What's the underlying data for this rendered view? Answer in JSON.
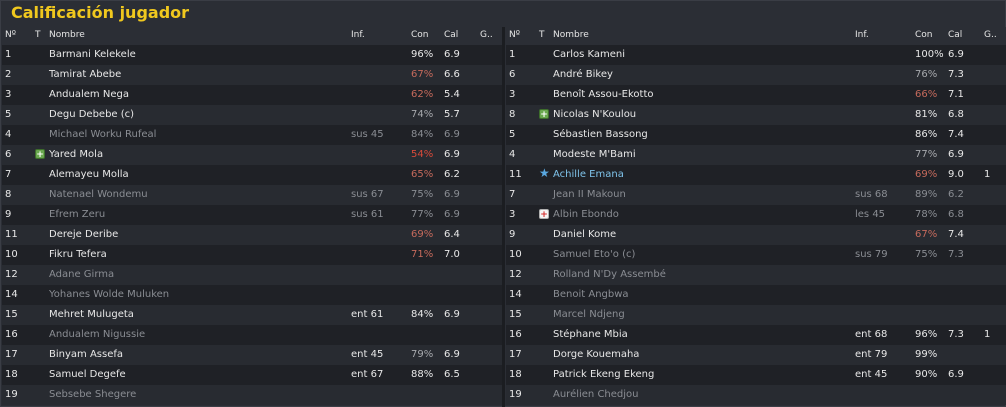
{
  "title": "Calificación jugador",
  "headers": {
    "no": "Nº",
    "t": "T",
    "name": "Nombre",
    "inf": "Inf.",
    "con": "Con",
    "cal": "Cal",
    "g": "G.."
  },
  "left_team": [
    {
      "no": "1",
      "name": "Barmani Kelekele",
      "inf": "",
      "con": "96%",
      "cal": "6.9",
      "g": ""
    },
    {
      "no": "2",
      "name": "Tamirat Abebe",
      "inf": "",
      "con": "67%",
      "cal": "6.6",
      "g": ""
    },
    {
      "no": "3",
      "name": "Andualem Nega",
      "inf": "",
      "con": "62%",
      "cal": "5.4",
      "g": ""
    },
    {
      "no": "5",
      "name": "Degu Debebe (c)",
      "inf": "",
      "con": "74%",
      "cal": "5.7",
      "g": ""
    },
    {
      "no": "4",
      "name": "Michael Worku Rufeal",
      "inf": "sus 45",
      "con": "84%",
      "cal": "6.9",
      "g": ""
    },
    {
      "no": "6",
      "icon": "plus-icon",
      "name": "Yared Mola",
      "inf": "",
      "con": "54%",
      "cal": "6.9",
      "g": ""
    },
    {
      "no": "7",
      "name": "Alemayeu Molla",
      "inf": "",
      "con": "65%",
      "cal": "6.2",
      "g": ""
    },
    {
      "no": "8",
      "name": "Natenael Wondemu",
      "inf": "sus 67",
      "con": "75%",
      "cal": "6.9",
      "g": ""
    },
    {
      "no": "9",
      "name": "Efrem Zeru",
      "inf": "sus 61",
      "con": "77%",
      "cal": "6.9",
      "g": ""
    },
    {
      "no": "11",
      "name": "Dereje Deribe",
      "inf": "",
      "con": "69%",
      "cal": "6.4",
      "g": ""
    },
    {
      "no": "10",
      "name": "Fikru Tefera",
      "inf": "",
      "con": "71%",
      "cal": "7.0",
      "g": ""
    },
    {
      "no": "12",
      "name": "Adane Girma",
      "inf": "",
      "con": "",
      "cal": "",
      "g": ""
    },
    {
      "no": "14",
      "name": "Yohanes Wolde Muluken",
      "inf": "",
      "con": "",
      "cal": "",
      "g": ""
    },
    {
      "no": "15",
      "name": "Mehret Mulugeta",
      "inf": "ent 61",
      "con": "84%",
      "cal": "6.9",
      "g": ""
    },
    {
      "no": "16",
      "name": "Andualem Nigussie",
      "inf": "",
      "con": "",
      "cal": "",
      "g": ""
    },
    {
      "no": "17",
      "name": "Binyam Assefa",
      "inf": "ent 45",
      "con": "79%",
      "cal": "6.9",
      "g": ""
    },
    {
      "no": "18",
      "name": "Samuel Degefe",
      "inf": "ent 67",
      "con": "88%",
      "cal": "6.5",
      "g": ""
    },
    {
      "no": "19",
      "name": "Sebsebe Shegere",
      "inf": "",
      "con": "",
      "cal": "",
      "g": ""
    }
  ],
  "right_team": [
    {
      "no": "1",
      "name": "Carlos Kameni",
      "inf": "",
      "con": "100%",
      "cal": "6.9",
      "g": ""
    },
    {
      "no": "6",
      "name": "André Bikey",
      "inf": "",
      "con": "76%",
      "cal": "7.3",
      "g": ""
    },
    {
      "no": "3",
      "name": "Benoît Assou-Ekotto",
      "inf": "",
      "con": "66%",
      "cal": "7.1",
      "g": ""
    },
    {
      "no": "8",
      "icon": "plus-icon",
      "name": "Nicolas N'Koulou",
      "inf": "",
      "con": "81%",
      "cal": "6.8",
      "g": ""
    },
    {
      "no": "5",
      "name": "Sébastien Bassong",
      "inf": "",
      "con": "86%",
      "cal": "7.4",
      "g": ""
    },
    {
      "no": "4",
      "name": "Modeste M'Bami",
      "inf": "",
      "con": "77%",
      "cal": "6.9",
      "g": ""
    },
    {
      "no": "11",
      "icon": "star-icon",
      "name": "Achille Emana",
      "inf": "",
      "con": "69%",
      "cal": "9.0",
      "g": "1"
    },
    {
      "no": "7",
      "name": "Jean II Makoun",
      "inf": "sus 68",
      "con": "89%",
      "cal": "6.2",
      "g": ""
    },
    {
      "no": "3",
      "icon": "injury-icon",
      "name": "Albin Ebondo",
      "inf": "les 45",
      "con": "78%",
      "cal": "6.8",
      "g": ""
    },
    {
      "no": "9",
      "name": "Daniel Kome",
      "inf": "",
      "con": "67%",
      "cal": "7.4",
      "g": ""
    },
    {
      "no": "10",
      "name": "Samuel Eto'o (c)",
      "inf": "sus 79",
      "con": "75%",
      "cal": "7.3",
      "g": ""
    },
    {
      "no": "12",
      "name": "Rolland N'Dy Assembé",
      "inf": "",
      "con": "",
      "cal": "",
      "g": ""
    },
    {
      "no": "14",
      "name": "Benoit Angbwa",
      "inf": "",
      "con": "",
      "cal": "",
      "g": ""
    },
    {
      "no": "15",
      "name": "Marcel Ndjeng",
      "inf": "",
      "con": "",
      "cal": "",
      "g": ""
    },
    {
      "no": "16",
      "name": "Stéphane Mbia",
      "inf": "ent 68",
      "con": "96%",
      "cal": "7.3",
      "g": "1"
    },
    {
      "no": "17",
      "name": "Dorge Kouemaha",
      "inf": "ent 79",
      "con": "99%",
      "cal": "",
      "g": ""
    },
    {
      "no": "18",
      "name": "Patrick Ekeng Ekeng",
      "inf": "ent 45",
      "con": "90%",
      "cal": "6.9",
      "g": ""
    },
    {
      "no": "19",
      "name": "Aurélien Chedjou",
      "inf": "",
      "con": "",
      "cal": "",
      "g": ""
    }
  ]
}
